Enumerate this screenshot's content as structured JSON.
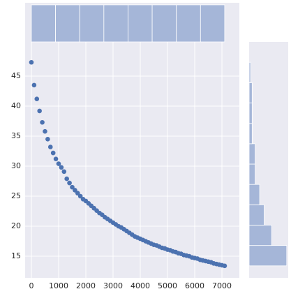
{
  "chart_data": [
    {
      "type": "scatter",
      "color": "#4c72b0",
      "x": [
        0,
        100,
        200,
        300,
        400,
        500,
        600,
        700,
        800,
        900,
        1000,
        1100,
        1200,
        1300,
        1400,
        1500,
        1600,
        1700,
        1800,
        1900,
        2000,
        2100,
        2200,
        2300,
        2400,
        2500,
        2600,
        2700,
        2800,
        2900,
        3000,
        3100,
        3200,
        3300,
        3400,
        3500,
        3600,
        3700,
        3800,
        3900,
        4000,
        4100,
        4200,
        4300,
        4400,
        4500,
        4600,
        4700,
        4800,
        4900,
        5000,
        5100,
        5200,
        5300,
        5400,
        5500,
        5600,
        5700,
        5800,
        5900,
        6000,
        6100,
        6200,
        6300,
        6400,
        6500,
        6600,
        6700,
        6800,
        6900,
        7000,
        7100
      ],
      "values": [
        47.3,
        43.5,
        41.2,
        39.2,
        37.3,
        35.8,
        34.5,
        33.2,
        32.2,
        31.2,
        30.4,
        29.8,
        29.1,
        27.9,
        27.2,
        26.5,
        26.0,
        25.5,
        25.0,
        24.5,
        24.2,
        23.8,
        23.4,
        23.0,
        22.6,
        22.2,
        21.9,
        21.5,
        21.2,
        20.9,
        20.6,
        20.3,
        20.0,
        19.8,
        19.5,
        19.2,
        18.9,
        18.6,
        18.3,
        18.1,
        17.9,
        17.7,
        17.5,
        17.3,
        17.1,
        16.9,
        16.8,
        16.6,
        16.4,
        16.3,
        16.1,
        16.0,
        15.8,
        15.7,
        15.5,
        15.4,
        15.2,
        15.1,
        15.0,
        14.8,
        14.7,
        14.6,
        14.4,
        14.3,
        14.2,
        14.1,
        14.0,
        13.8,
        13.7,
        13.6,
        13.5,
        13.4
      ],
      "xlim": [
        -230,
        7640
      ],
      "xticks": [
        0,
        1000,
        2000,
        3000,
        4000,
        5000,
        6000,
        7000
      ],
      "ylim": [
        11.4,
        50.7
      ],
      "yticks": [
        15,
        20,
        25,
        30,
        35,
        40,
        45
      ],
      "grid": true
    },
    {
      "type": "histogram",
      "orientation": "vertical",
      "color": "#a5b6d8",
      "bins": [
        0,
        887.5,
        1775,
        2662.5,
        3550,
        4437.5,
        5325,
        6212.5,
        7100
      ],
      "values": [
        9,
        9,
        9,
        9,
        9,
        9,
        9,
        9
      ],
      "xlim": [
        -230,
        7640
      ],
      "ylim": [
        0,
        9.5
      ]
    },
    {
      "type": "histogram",
      "orientation": "horizontal",
      "color": "#a5b6d8",
      "bins": [
        13.4,
        16.79,
        20.18,
        23.57,
        26.96,
        30.35,
        33.74,
        37.13,
        40.52,
        43.91,
        47.3
      ],
      "values": [
        25,
        15,
        10,
        7,
        4,
        4,
        2,
        2,
        2,
        1
      ],
      "xlim": [
        0,
        26
      ],
      "ylim": [
        11.4,
        50.7
      ]
    }
  ]
}
